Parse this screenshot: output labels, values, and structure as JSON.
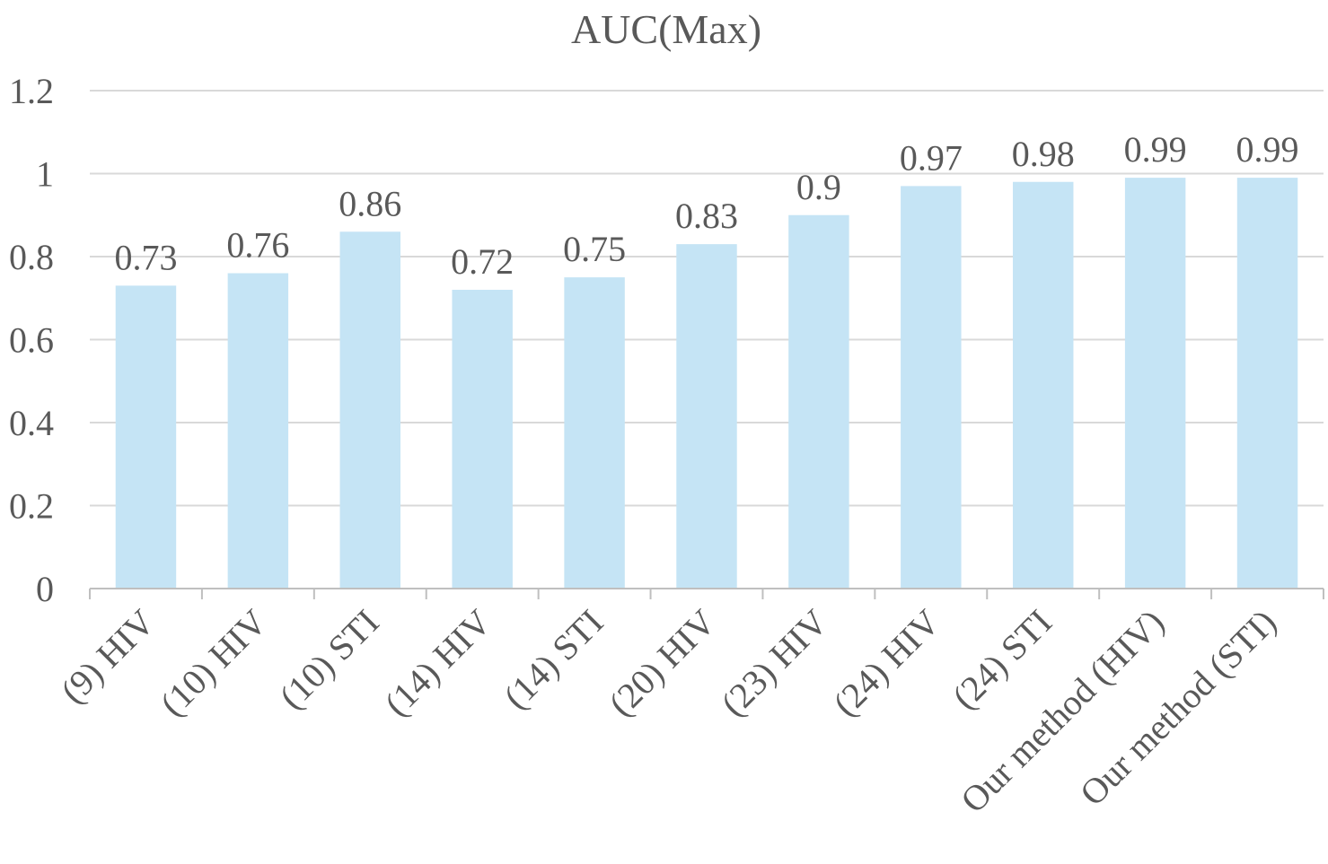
{
  "colors": {
    "bar": "#c5e4f5",
    "grid": "#d9d9d9",
    "axis": "#bfbfbf",
    "text": "#595959"
  },
  "chart_data": {
    "type": "bar",
    "title": "AUC(Max)",
    "xlabel": "",
    "ylabel": "",
    "categories": [
      "(9) HIV",
      "(10) HIV",
      "(10) STI",
      "(14) HIV",
      "(14) STI",
      "(20) HIV",
      "(23) HIV",
      "(24) HIV",
      "(24) STI",
      "Our method (HIV)",
      "Our method (STI)"
    ],
    "values": [
      0.73,
      0.76,
      0.86,
      0.72,
      0.75,
      0.83,
      0.9,
      0.97,
      0.98,
      0.99,
      0.99
    ],
    "data_labels": [
      "0.73",
      "0.76",
      "0.86",
      "0.72",
      "0.75",
      "0.83",
      "0.9",
      "0.97",
      "0.98",
      "0.99",
      "0.99"
    ],
    "ylim": [
      0,
      1.2
    ],
    "yticks": [
      0,
      0.2,
      0.4,
      0.6,
      0.8,
      1,
      1.2
    ],
    "ytick_labels": [
      "0",
      "0.2",
      "0.4",
      "0.6",
      "0.8",
      "1",
      "1.2"
    ],
    "grid": true,
    "legend": "none"
  }
}
